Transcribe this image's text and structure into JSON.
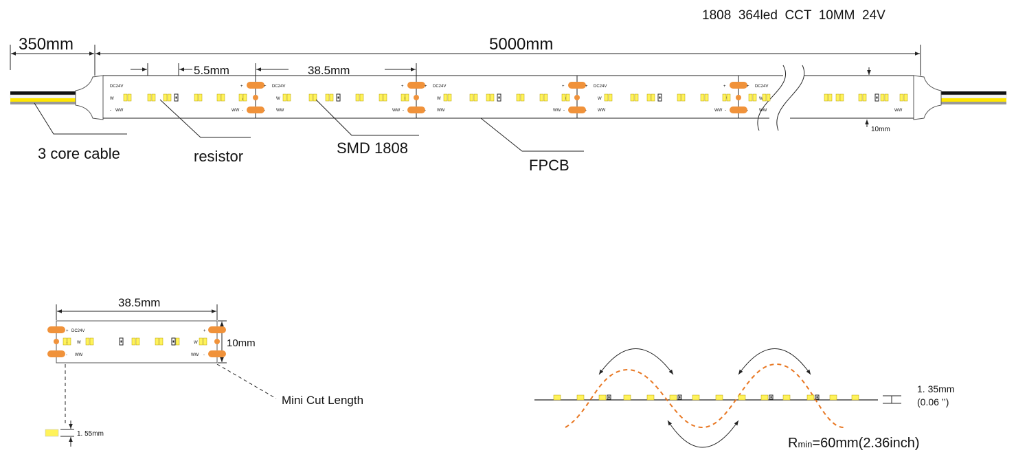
{
  "header": {
    "spec": "1808  364led  CCT  10MM  24V"
  },
  "dimensions": {
    "cable_length": "350mm",
    "strip_length": "5000mm",
    "led_pitch": "5.5mm",
    "cut_length": "38.5mm",
    "width": "10mm"
  },
  "callouts": {
    "cable": "3 core cable",
    "resistor": "resistor",
    "led": "SMD 1808",
    "pcb": "FPCB"
  },
  "detail": {
    "cut_length": "38.5mm",
    "width": "10mm",
    "mini_cut": "Mini Cut Length",
    "led_height": "1. 55mm"
  },
  "bend": {
    "thickness": "1. 35mm",
    "thickness_inch": "(0.06 ’’)",
    "radius_symbol": "R",
    "radius_sub": "min",
    "radius_value": "=60mm(2.36inch)"
  },
  "pad_labels": {
    "dc": "DC24V",
    "w": "W",
    "ww": "WW",
    "plus": "+",
    "minus": "-"
  }
}
